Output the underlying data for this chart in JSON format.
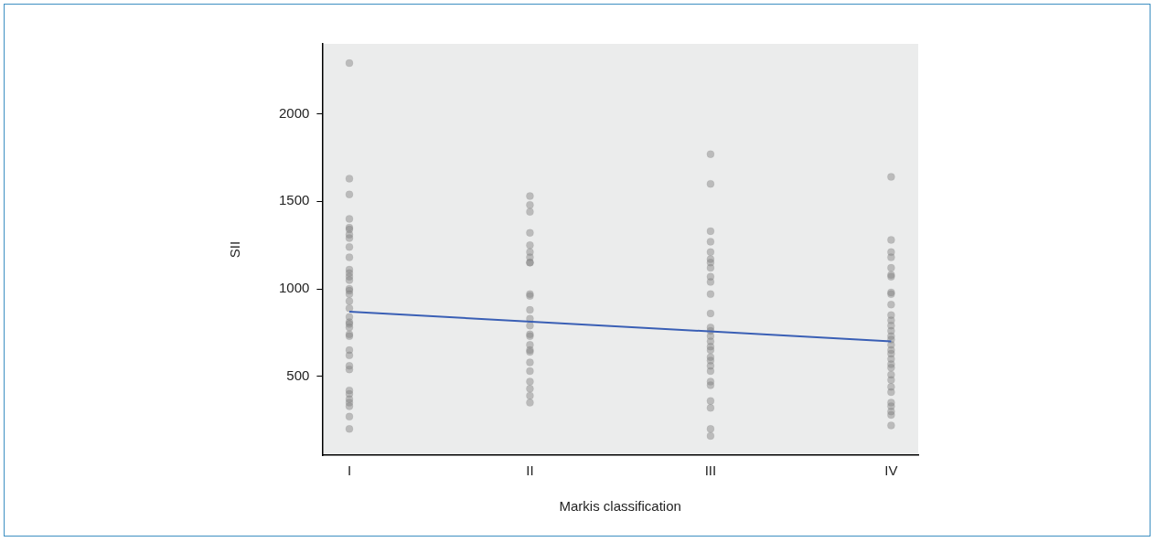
{
  "chart_data": {
    "type": "scatter",
    "xlabel": "Markis classification",
    "ylabel": "SII",
    "categories": [
      "I",
      "II",
      "III",
      "IV"
    ],
    "ylim": [
      50,
      2400
    ],
    "yticks": [
      500,
      1000,
      1500,
      2000
    ],
    "grid": false,
    "legend": false,
    "series": [
      {
        "marker": "circle",
        "color": "#808080",
        "x": [
          "I",
          "I",
          "I",
          "I",
          "I",
          "I",
          "I",
          "I",
          "I",
          "I",
          "I",
          "I",
          "I",
          "I",
          "I",
          "I",
          "I",
          "I",
          "I",
          "I",
          "I",
          "I",
          "I",
          "I",
          "I",
          "I",
          "I",
          "I",
          "I",
          "I",
          "I",
          "I",
          "I",
          "I",
          "I",
          "I",
          "II",
          "II",
          "II",
          "II",
          "II",
          "II",
          "II",
          "II",
          "II",
          "II",
          "II",
          "II",
          "II",
          "II",
          "II",
          "II",
          "II",
          "II",
          "II",
          "II",
          "II",
          "II",
          "II",
          "II",
          "II",
          "III",
          "III",
          "III",
          "III",
          "III",
          "III",
          "III",
          "III",
          "III",
          "III",
          "III",
          "III",
          "III",
          "III",
          "III",
          "III",
          "III",
          "III",
          "III",
          "III",
          "III",
          "III",
          "III",
          "III",
          "III",
          "III",
          "III",
          "III",
          "IV",
          "IV",
          "IV",
          "IV",
          "IV",
          "IV",
          "IV",
          "IV",
          "IV",
          "IV",
          "IV",
          "IV",
          "IV",
          "IV",
          "IV",
          "IV",
          "IV",
          "IV",
          "IV",
          "IV",
          "IV",
          "IV",
          "IV",
          "IV",
          "IV",
          "IV",
          "IV",
          "IV",
          "IV",
          "IV",
          "IV"
        ],
        "values": [
          2290,
          1630,
          1540,
          1400,
          1350,
          1340,
          1310,
          1290,
          1240,
          1180,
          1110,
          1090,
          1070,
          1050,
          1000,
          990,
          970,
          930,
          890,
          840,
          810,
          800,
          780,
          740,
          730,
          650,
          620,
          560,
          540,
          420,
          400,
          370,
          350,
          330,
          270,
          200,
          1530,
          1480,
          1440,
          1320,
          1250,
          1210,
          1180,
          1150,
          1150,
          970,
          960,
          880,
          830,
          790,
          740,
          730,
          680,
          650,
          640,
          580,
          530,
          470,
          430,
          390,
          350,
          1770,
          1600,
          1330,
          1270,
          1210,
          1170,
          1150,
          1120,
          1070,
          1040,
          970,
          860,
          780,
          760,
          730,
          700,
          670,
          650,
          610,
          590,
          560,
          530,
          470,
          450,
          360,
          320,
          200,
          160,
          1640,
          1280,
          1210,
          1180,
          1120,
          1080,
          1070,
          980,
          970,
          910,
          850,
          820,
          790,
          760,
          730,
          710,
          680,
          650,
          630,
          600,
          570,
          550,
          510,
          480,
          440,
          410,
          350,
          330,
          300,
          280,
          220
        ]
      },
      {
        "type": "line",
        "color": "#3a5fb5",
        "x": [
          "I",
          "IV"
        ],
        "values": [
          870,
          700
        ]
      }
    ]
  }
}
